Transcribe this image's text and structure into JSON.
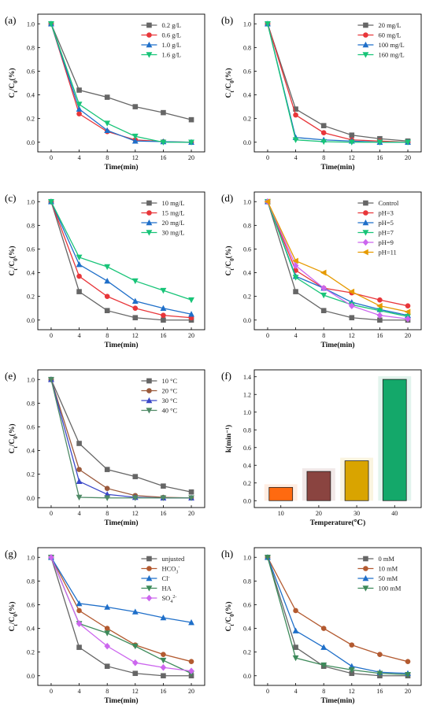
{
  "chart_data": [
    {
      "panel": "(a)",
      "type": "line",
      "xlabel": "Time(min)",
      "ylabel": "Ct/C0(%)",
      "xlim": [
        0,
        20
      ],
      "ylim": [
        0,
        1.0
      ],
      "xticks": [
        0,
        4,
        8,
        12,
        16,
        20
      ],
      "yticks": [
        0.0,
        0.2,
        0.4,
        0.6,
        0.8,
        1.0
      ],
      "legend": "top-right",
      "x": [
        0,
        4,
        8,
        12,
        16,
        20
      ],
      "series": [
        {
          "name": "0.2 g/L",
          "color": "#666666",
          "marker": "square",
          "values": [
            1.0,
            0.44,
            0.38,
            0.3,
            0.25,
            0.19
          ]
        },
        {
          "name": "0.6 g/L",
          "color": "#e8363a",
          "marker": "circle",
          "values": [
            1.0,
            0.24,
            0.09,
            0.02,
            0.005,
            0.0
          ]
        },
        {
          "name": "1.0 g/L",
          "color": "#1f6fc9",
          "marker": "triangle",
          "values": [
            1.0,
            0.28,
            0.1,
            0.01,
            0.005,
            0.0
          ]
        },
        {
          "name": "1.6 g/L",
          "color": "#18c478",
          "marker": "triangle-down",
          "values": [
            1.0,
            0.32,
            0.16,
            0.05,
            0.0,
            0.0
          ]
        }
      ]
    },
    {
      "panel": "(b)",
      "type": "line",
      "xlabel": "Time(min)",
      "ylabel": "Ct/C0(%)",
      "xlim": [
        0,
        20
      ],
      "ylim": [
        0,
        1.0
      ],
      "xticks": [
        0,
        4,
        8,
        12,
        16,
        20
      ],
      "yticks": [
        0.0,
        0.2,
        0.4,
        0.6,
        0.8,
        1.0
      ],
      "legend": "top-right",
      "x": [
        0,
        4,
        8,
        12,
        16,
        20
      ],
      "series": [
        {
          "name": "20 mg/L",
          "color": "#666666",
          "marker": "square",
          "values": [
            1.0,
            0.28,
            0.14,
            0.06,
            0.03,
            0.01
          ]
        },
        {
          "name": "60 mg/L",
          "color": "#e8363a",
          "marker": "circle",
          "values": [
            1.0,
            0.23,
            0.08,
            0.02,
            0.01,
            0.0
          ]
        },
        {
          "name": "100 mg/L",
          "color": "#1f6fc9",
          "marker": "triangle",
          "values": [
            1.0,
            0.04,
            0.02,
            0.01,
            0.0,
            0.0
          ]
        },
        {
          "name": "160 mg/L",
          "color": "#18c478",
          "marker": "triangle-down",
          "values": [
            1.0,
            0.02,
            0.005,
            0.0,
            0.0,
            0.0
          ]
        }
      ]
    },
    {
      "panel": "(c)",
      "type": "line",
      "xlabel": "Time(min)",
      "ylabel": "Ct/C0(%)",
      "xlim": [
        0,
        20
      ],
      "ylim": [
        0,
        1.0
      ],
      "xticks": [
        0,
        4,
        8,
        12,
        16,
        20
      ],
      "yticks": [
        0.0,
        0.2,
        0.4,
        0.6,
        0.8,
        1.0
      ],
      "legend": "top-right",
      "x": [
        0,
        4,
        8,
        12,
        16,
        20
      ],
      "series": [
        {
          "name": "10 mg/L",
          "color": "#666666",
          "marker": "square",
          "values": [
            1.0,
            0.24,
            0.08,
            0.02,
            0.0,
            0.0
          ]
        },
        {
          "name": "15 mg/L",
          "color": "#e8363a",
          "marker": "circle",
          "values": [
            1.0,
            0.37,
            0.2,
            0.1,
            0.04,
            0.02
          ]
        },
        {
          "name": "20 mg/L",
          "color": "#1f6fc9",
          "marker": "triangle",
          "values": [
            1.0,
            0.47,
            0.33,
            0.16,
            0.1,
            0.05
          ]
        },
        {
          "name": "30 mg/L",
          "color": "#18c478",
          "marker": "triangle-down",
          "values": [
            1.0,
            0.53,
            0.45,
            0.33,
            0.25,
            0.17
          ]
        }
      ]
    },
    {
      "panel": "(d)",
      "type": "line",
      "xlabel": "Time(min)",
      "ylabel": "Ct/C0(%)",
      "xlim": [
        0,
        20
      ],
      "ylim": [
        0,
        1.0
      ],
      "xticks": [
        0,
        4,
        8,
        12,
        16,
        20
      ],
      "yticks": [
        0.0,
        0.2,
        0.4,
        0.6,
        0.8,
        1.0
      ],
      "legend": "top-right",
      "x": [
        0,
        4,
        8,
        12,
        16,
        20
      ],
      "series": [
        {
          "name": "Control",
          "color": "#666666",
          "marker": "square",
          "values": [
            1.0,
            0.24,
            0.08,
            0.02,
            0.0,
            0.0
          ]
        },
        {
          "name": "pH=3",
          "color": "#e8363a",
          "marker": "circle",
          "values": [
            1.0,
            0.42,
            0.27,
            0.23,
            0.17,
            0.12
          ]
        },
        {
          "name": "pH=5",
          "color": "#1f6fc9",
          "marker": "triangle",
          "values": [
            1.0,
            0.37,
            0.27,
            0.15,
            0.09,
            0.04
          ]
        },
        {
          "name": "pH=7",
          "color": "#18c478",
          "marker": "triangle-down",
          "values": [
            1.0,
            0.36,
            0.21,
            0.13,
            0.08,
            0.03
          ]
        },
        {
          "name": "pH=9",
          "color": "#cc66ee",
          "marker": "diamond",
          "values": [
            1.0,
            0.46,
            0.27,
            0.12,
            0.04,
            0.01
          ]
        },
        {
          "name": "pH=11",
          "color": "#e69a00",
          "marker": "triangle-left",
          "values": [
            1.0,
            0.5,
            0.4,
            0.24,
            0.12,
            0.07
          ]
        }
      ]
    },
    {
      "panel": "(e)",
      "type": "line",
      "xlabel": "Time(min)",
      "ylabel": "Ct/C0(%)",
      "xlim": [
        0,
        20
      ],
      "ylim": [
        0,
        1.0
      ],
      "xticks": [
        0,
        4,
        8,
        12,
        16,
        20
      ],
      "yticks": [
        0.0,
        0.2,
        0.4,
        0.6,
        0.8,
        1.0
      ],
      "legend": "top-right",
      "x": [
        0,
        4,
        8,
        12,
        16,
        20
      ],
      "series": [
        {
          "name": "10 °C",
          "color": "#666666",
          "marker": "square",
          "values": [
            1.0,
            0.46,
            0.24,
            0.18,
            0.1,
            0.05
          ]
        },
        {
          "name": "20 °C",
          "color": "#9b5a3c",
          "marker": "circle",
          "values": [
            1.0,
            0.24,
            0.08,
            0.02,
            0.005,
            0.0
          ]
        },
        {
          "name": "30 °C",
          "color": "#3a47c8",
          "marker": "triangle",
          "values": [
            1.0,
            0.14,
            0.03,
            0.005,
            0.0,
            0.0
          ]
        },
        {
          "name": "40 °C",
          "color": "#4f8a66",
          "marker": "triangle-down",
          "values": [
            1.0,
            0.005,
            0.0,
            0.0,
            0.0,
            0.0
          ]
        }
      ]
    },
    {
      "panel": "(f)",
      "type": "bar",
      "xlabel": "Temperature(℃)",
      "ylabel": "k(min⁻¹)",
      "ylim": [
        0,
        1.4
      ],
      "yticks": [
        0.0,
        0.2,
        0.4,
        0.6,
        0.8,
        1.0,
        1.2,
        1.4
      ],
      "categories": [
        "10",
        "20",
        "30",
        "40"
      ],
      "values": [
        0.15,
        0.33,
        0.45,
        1.37
      ],
      "colors": [
        "#ff6a10",
        "#8a4440",
        "#d9a400",
        "#14a86a"
      ]
    },
    {
      "panel": "(g)",
      "type": "line",
      "xlabel": "Time(min)",
      "ylabel": "Ct/C0(%)",
      "xlim": [
        0,
        20
      ],
      "ylim": [
        0,
        1.0
      ],
      "xticks": [
        0,
        4,
        8,
        12,
        16,
        20
      ],
      "yticks": [
        0.0,
        0.2,
        0.4,
        0.6,
        0.8,
        1.0
      ],
      "legend": "top-right",
      "x": [
        0,
        4,
        8,
        12,
        16,
        20
      ],
      "series": [
        {
          "name": "unjusted",
          "color": "#666666",
          "marker": "square",
          "values": [
            1.0,
            0.24,
            0.08,
            0.02,
            0.0,
            0.0
          ]
        },
        {
          "name": "HCO3-",
          "color": "#b35a30",
          "marker": "circle",
          "values": [
            1.0,
            0.55,
            0.4,
            0.26,
            0.18,
            0.12
          ]
        },
        {
          "name": "Cl-",
          "color": "#1f6fc9",
          "marker": "triangle",
          "values": [
            1.0,
            0.61,
            0.58,
            0.54,
            0.49,
            0.45
          ]
        },
        {
          "name": "HA",
          "color": "#3d8a5a",
          "marker": "triangle-down",
          "values": [
            1.0,
            0.44,
            0.36,
            0.25,
            0.13,
            0.02
          ]
        },
        {
          "name": "SO42-",
          "color": "#cc66ee",
          "marker": "diamond",
          "values": [
            1.0,
            0.44,
            0.25,
            0.11,
            0.07,
            0.04
          ]
        }
      ]
    },
    {
      "panel": "(h)",
      "type": "line",
      "xlabel": "Time(min)",
      "ylabel": "Ct/C0(%)",
      "xlim": [
        0,
        20
      ],
      "ylim": [
        0,
        1.0
      ],
      "xticks": [
        0,
        4,
        8,
        12,
        16,
        20
      ],
      "yticks": [
        0.0,
        0.2,
        0.4,
        0.6,
        0.8,
        1.0
      ],
      "legend": "top-right",
      "x": [
        0,
        4,
        8,
        12,
        16,
        20
      ],
      "series": [
        {
          "name": "0 mM",
          "color": "#666666",
          "marker": "square",
          "values": [
            1.0,
            0.24,
            0.08,
            0.02,
            0.0,
            0.0
          ]
        },
        {
          "name": "10 mM",
          "color": "#b35a30",
          "marker": "circle",
          "values": [
            1.0,
            0.55,
            0.4,
            0.26,
            0.18,
            0.12
          ]
        },
        {
          "name": "50 mM",
          "color": "#1f6fc9",
          "marker": "triangle",
          "values": [
            1.0,
            0.38,
            0.24,
            0.08,
            0.03,
            0.02
          ]
        },
        {
          "name": "100 mM",
          "color": "#3d8a5a",
          "marker": "triangle-down",
          "values": [
            1.0,
            0.15,
            0.09,
            0.05,
            0.02,
            0.01
          ]
        }
      ]
    }
  ]
}
